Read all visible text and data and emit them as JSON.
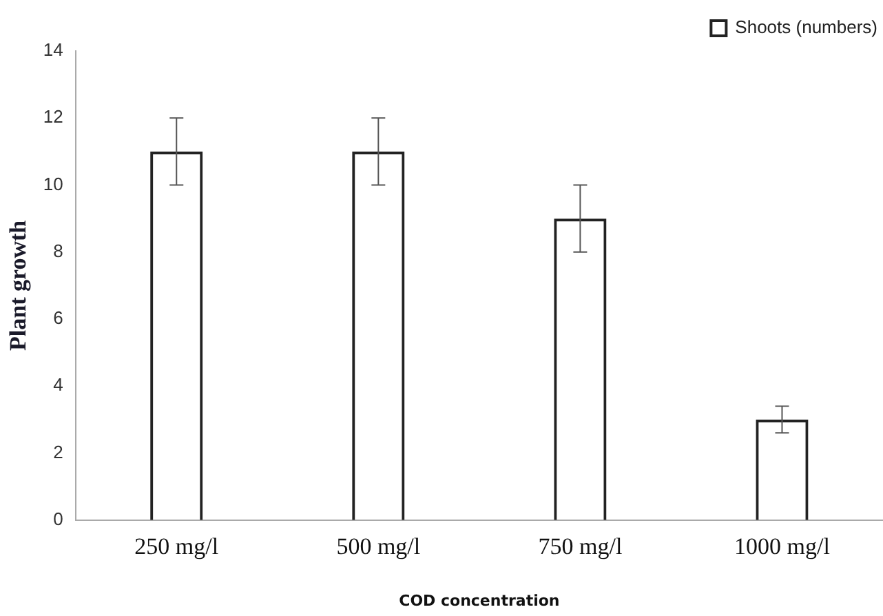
{
  "chart_data": {
    "type": "bar",
    "xlabel": "COD concentration",
    "ylabel": "Plant growth",
    "categories": [
      "250 mg/l",
      "500 mg/l",
      "750 mg/l",
      "1000 mg/l"
    ],
    "series": [
      {
        "name": "Shoots (numbers)",
        "color": "#222222",
        "values": [
          11,
          11,
          9,
          3
        ],
        "errors": [
          1,
          1,
          1,
          0.4
        ]
      }
    ],
    "ylim": [
      0,
      14
    ],
    "yticks": [
      0,
      2,
      4,
      6,
      8,
      10,
      12,
      14
    ],
    "grid": false,
    "legend": "top right"
  }
}
